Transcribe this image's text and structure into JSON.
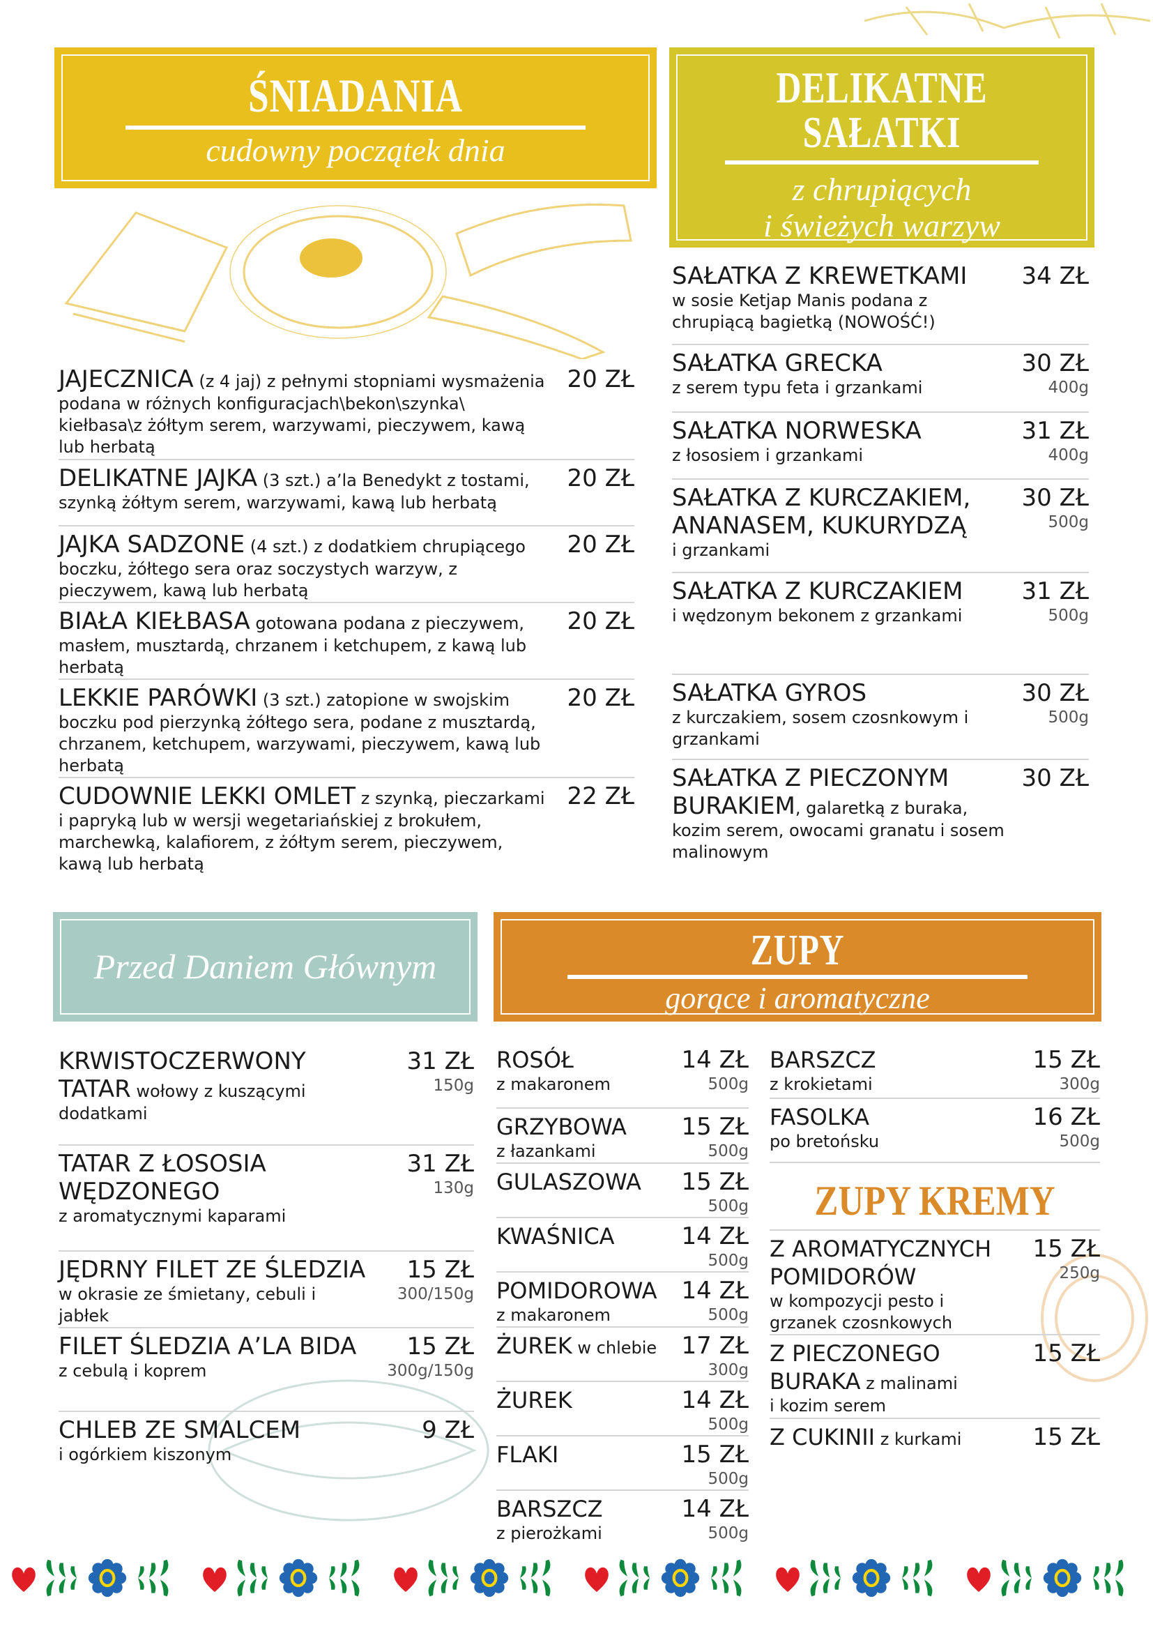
{
  "colors": {
    "sniadania": "#e9bf1e",
    "salatki": "#d4c62a",
    "przed": "#a8cbc3",
    "zupy": "#db8a2a",
    "kremy": "#db8a2a"
  },
  "sniadania": {
    "title": "ŚNIADANIA",
    "subtitle": "cudowny początek dnia",
    "items": [
      {
        "name": "JAJECZNICA",
        "desc": " (z 4 jaj) z pełnymi stopniami wysmażenia podana w różnych konfiguracjach\\bekon\\szynka\\ kiełbasa\\z żółtym serem, warzywami, pieczywem, kawą lub herbatą",
        "price": "20 ZŁ"
      },
      {
        "name": "DELIKATNE JAJKA",
        "desc": " (3 szt.) a’la Benedykt z tostami, szynką żółtym serem, warzywami, kawą lub herbatą",
        "price": "20 ZŁ"
      },
      {
        "name": "JAJKA SADZONE",
        "desc": " (4 szt.) z dodatkiem chrupiącego boczku, żółtego sera oraz soczystych warzyw, z pieczywem, kawą lub herbatą",
        "price": "20 ZŁ"
      },
      {
        "name": "BIAŁA KIEŁBASA",
        "desc": " gotowana podana z pieczywem, masłem, musztardą, chrzanem i ketchupem, z kawą lub herbatą",
        "price": "20 ZŁ"
      },
      {
        "name": "LEKKIE PARÓWKI",
        "desc": " (3 szt.) zatopione w swojskim boczku pod pierzynką żółtego sera, podane z musztardą, chrzanem, ketchupem, warzywami, pieczywem, kawą lub herbatą",
        "price": "20 ZŁ"
      },
      {
        "name": "CUDOWNIE LEKKI OMLET",
        "desc": " z szynką, pieczarkami i papryką lub w wersji wegetariańskiej z brokułem, marchewką, kalafiorem, z żółtym serem, pieczywem, kawą lub herbatą",
        "price": "22 ZŁ"
      }
    ]
  },
  "salatki": {
    "title_line1": "DELIKATNE",
    "title_line2": "SAŁATKI",
    "subtitle_line1": "z chrupiących",
    "subtitle_line2": "i świeżych warzyw",
    "items": [
      {
        "name": "SAŁATKA Z KREWETKAMI",
        "sub": "w sosie Ketjap Manis podana z chrupiącą bagietką (NOWOŚĆ!)",
        "price": "34 ZŁ"
      },
      {
        "name": "SAŁATKA GRECKA",
        "sub": "z serem typu feta i grzankami",
        "price": "30 ZŁ",
        "weight": "400g"
      },
      {
        "name": "SAŁATKA NORWESKA",
        "sub": "z łososiem i grzankami",
        "price": "31 ZŁ",
        "weight": "400g"
      },
      {
        "name": "SAŁATKA Z KURCZAKIEM, ANANASEM, KUKURYDZĄ",
        "sub": "i grzankami",
        "price": "30 ZŁ",
        "weight": "500g"
      },
      {
        "name": "SAŁATKA Z KURCZAKIEM",
        "sub": "i wędzonym bekonem z grzankami",
        "price": "31 ZŁ",
        "weight": "500g"
      },
      {
        "name": "SAŁATKA GYROS",
        "sub": "z kurczakiem, sosem czosnkowym i grzankami",
        "price": "30 ZŁ",
        "weight": "500g"
      },
      {
        "name": "SAŁATKA Z PIECZONYM BURAKIEM",
        "desc": ", galaretką z buraka, kozim serem, owocami granatu i sosem malinowym",
        "price": "30 ZŁ"
      }
    ]
  },
  "przed": {
    "title": "Przed Daniem Głównym",
    "items": [
      {
        "name": "KRWISTOCZERWONY TATAR",
        "desc": " wołowy z kuszącymi dodatkami",
        "price": "31 ZŁ",
        "weight": "150g"
      },
      {
        "name": "TATAR Z ŁOSOSIA WĘDZONEGO",
        "sub": "z aromatycznymi kaparami",
        "price": "31 ZŁ",
        "weight": "130g"
      },
      {
        "name": "JĘDRNY FILET ZE ŚLEDZIA",
        "sub": "w okrasie ze śmietany, cebuli i jabłek",
        "price": "15 ZŁ",
        "weight": "300/150g"
      },
      {
        "name": "FILET ŚLEDZIA A’LA BIDA",
        "sub": "z cebulą i koprem",
        "price": "15 ZŁ",
        "weight": "300g/150g"
      },
      {
        "name": "CHLEB ZE SMALCEM",
        "sub": "i ogórkiem kiszonym",
        "price": "9 ZŁ"
      }
    ]
  },
  "zupy": {
    "title": "ZUPY",
    "subtitle": "gorące i aromatyczne",
    "items": [
      {
        "name": "ROSÓŁ",
        "sub": "z makaronem",
        "price": "14 ZŁ",
        "weight": "500g"
      },
      {
        "name": "GRZYBOWA",
        "sub": "z łazankami",
        "price": "15 ZŁ",
        "weight": "500g"
      },
      {
        "name": "GULASZOWA",
        "price": "15 ZŁ",
        "weight": "500g"
      },
      {
        "name": "KWAŚNICA",
        "price": "14 ZŁ",
        "weight": "500g"
      },
      {
        "name": "POMIDOROWA",
        "sub": "z makaronem",
        "price": "14 ZŁ",
        "weight": "500g"
      },
      {
        "name": "ŻUREK",
        "desc": " w chlebie",
        "price": "17 ZŁ",
        "weight": "300g"
      },
      {
        "name": "ŻUREK",
        "price": "14 ZŁ",
        "weight": "500g"
      },
      {
        "name": "FLAKI",
        "price": "15 ZŁ",
        "weight": "500g"
      },
      {
        "name": "BARSZCZ",
        "sub": "z pierożkami",
        "price": "14 ZŁ",
        "weight": "500g"
      }
    ],
    "items_right": [
      {
        "name": "BARSZCZ",
        "sub": "z krokietami",
        "price": "15 ZŁ",
        "weight": "300g"
      },
      {
        "name": "FASOLKA",
        "sub": "po bretońsku",
        "price": "16 ZŁ",
        "weight": "500g"
      }
    ]
  },
  "kremy": {
    "title": "ZUPY KREMY",
    "items": [
      {
        "name": "Z AROMATYCZNYCH POMIDORÓW",
        "sub": "w kompozycji pesto i grzanek czosnkowych",
        "price": "15 ZŁ",
        "weight": "250g"
      },
      {
        "name": "Z PIECZONEGO BURAKA",
        "desc": " z malinami",
        "sub": "i kozim serem",
        "price": "15 ZŁ"
      },
      {
        "name": "Z CUKINII",
        "desc": " z kurkami",
        "price": "15 ZŁ"
      }
    ]
  },
  "footer": {
    "icons": [
      "heart-icon",
      "leaf-icon",
      "flower-icon"
    ]
  }
}
